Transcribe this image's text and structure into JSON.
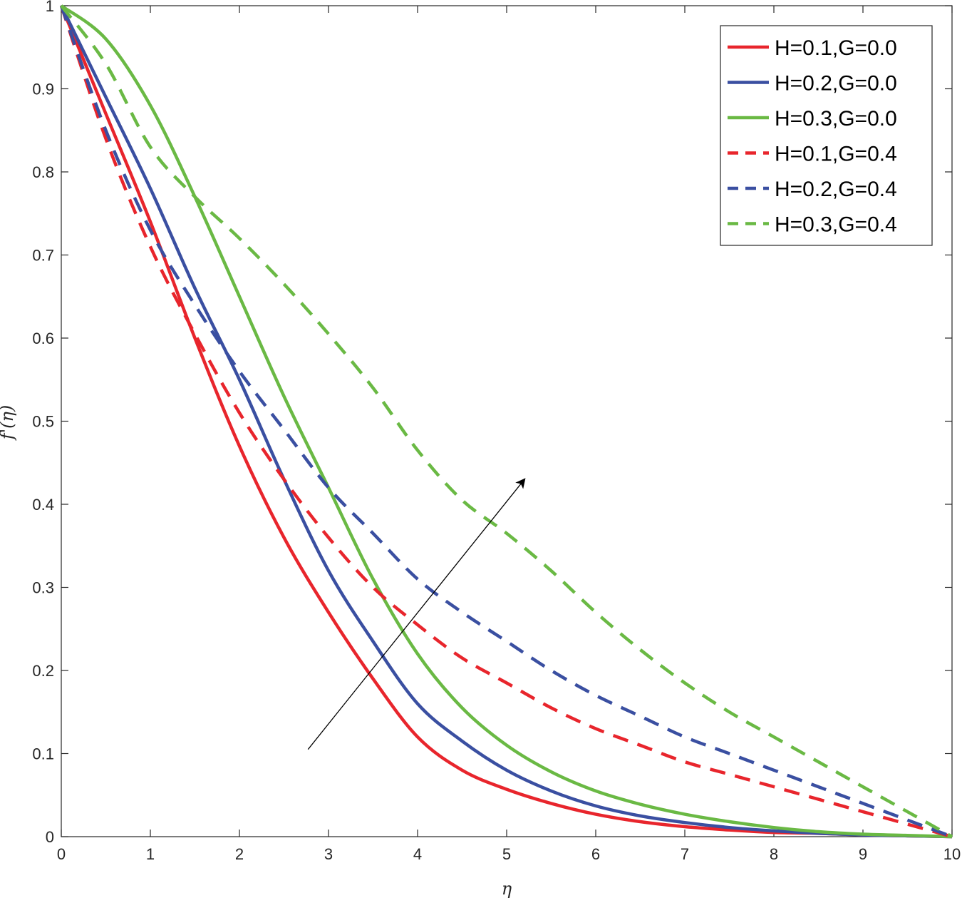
{
  "chart_data": {
    "type": "line",
    "title": "",
    "xlabel": "η",
    "ylabel": "f'(η)",
    "xlim": [
      0,
      10
    ],
    "ylim": [
      0,
      1
    ],
    "grid": false,
    "legend_position": "top-right",
    "x_ticks": [
      "0",
      "1",
      "2",
      "3",
      "4",
      "5",
      "6",
      "7",
      "8",
      "9",
      "10"
    ],
    "y_ticks": [
      "0",
      "0.1",
      "0.2",
      "0.3",
      "0.4",
      "0.5",
      "0.6",
      "0.7",
      "0.8",
      "0.9",
      "1"
    ],
    "x": [
      0,
      0.5,
      1,
      1.5,
      2,
      2.5,
      3,
      3.5,
      4,
      4.5,
      5,
      5.5,
      6,
      6.5,
      7,
      7.5,
      8,
      8.5,
      9,
      9.5,
      10
    ],
    "series": [
      {
        "name": "H=0.1,G=0.0",
        "color": "#e8252c",
        "dash": "solid",
        "y": [
          1.0,
          0.87,
          0.74,
          0.6,
          0.47,
          0.36,
          0.27,
          0.19,
          0.12,
          0.08,
          0.057,
          0.04,
          0.027,
          0.018,
          0.012,
          0.008,
          0.005,
          0.004,
          0.002,
          0.001,
          0.0
        ]
      },
      {
        "name": "H=0.2,G=0.0",
        "color": "#3a4fa1",
        "dash": "solid",
        "y": [
          1.0,
          0.89,
          0.78,
          0.66,
          0.55,
          0.43,
          0.32,
          0.235,
          0.16,
          0.115,
          0.08,
          0.055,
          0.037,
          0.025,
          0.017,
          0.011,
          0.007,
          0.004,
          0.002,
          0.001,
          0.0
        ]
      },
      {
        "name": "H=0.3,G=0.0",
        "color": "#6ab944",
        "dash": "solid",
        "y": [
          1.0,
          0.96,
          0.88,
          0.77,
          0.65,
          0.53,
          0.42,
          0.31,
          0.22,
          0.155,
          0.11,
          0.078,
          0.055,
          0.039,
          0.027,
          0.018,
          0.011,
          0.006,
          0.003,
          0.0015,
          0.0
        ]
      },
      {
        "name": "H=0.1,G=0.4",
        "color": "#e8252c",
        "dash": "dashed",
        "y": [
          1.0,
          0.84,
          0.71,
          0.605,
          0.51,
          0.43,
          0.36,
          0.3,
          0.255,
          0.215,
          0.185,
          0.155,
          0.13,
          0.11,
          0.09,
          0.075,
          0.06,
          0.045,
          0.03,
          0.015,
          0.0
        ]
      },
      {
        "name": "H=0.2,G=0.4",
        "color": "#3a4fa1",
        "dash": "dashed",
        "y": [
          1.0,
          0.85,
          0.73,
          0.64,
          0.56,
          0.49,
          0.42,
          0.365,
          0.31,
          0.27,
          0.235,
          0.2,
          0.17,
          0.145,
          0.12,
          0.1,
          0.08,
          0.06,
          0.04,
          0.02,
          0.0
        ]
      },
      {
        "name": "H=0.3,G=0.4",
        "color": "#6ab944",
        "dash": "dashed",
        "y": [
          1.0,
          0.93,
          0.83,
          0.77,
          0.72,
          0.665,
          0.605,
          0.54,
          0.465,
          0.405,
          0.365,
          0.32,
          0.27,
          0.225,
          0.185,
          0.15,
          0.12,
          0.09,
          0.06,
          0.03,
          0.0
        ]
      }
    ],
    "annotation": {
      "type": "arrow",
      "label": "",
      "from": [
        2.77,
        0.105
      ],
      "to": [
        5.2,
        0.43
      ]
    }
  }
}
